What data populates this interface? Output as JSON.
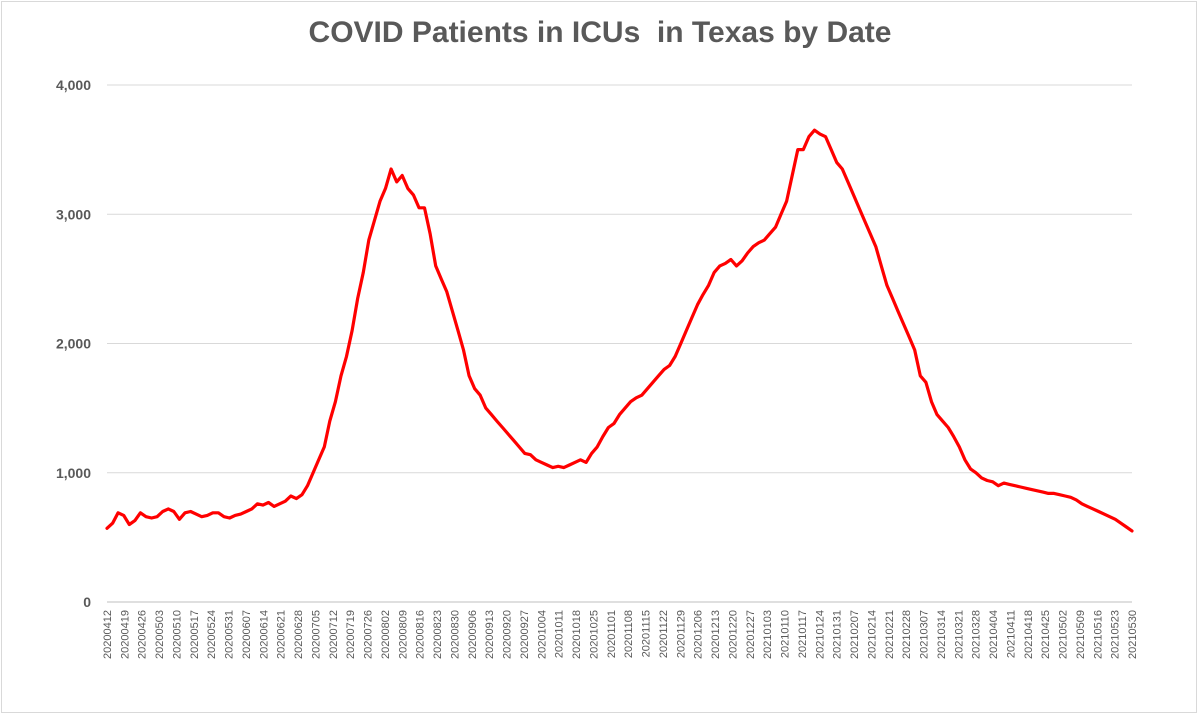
{
  "chart_data": {
    "type": "line",
    "title": "COVID Patients in ICUs  in Texas by Date",
    "xlabel": "",
    "ylabel": "",
    "ylim": [
      0,
      4000
    ],
    "y_ticks": [
      "0",
      "1,000",
      "2,000",
      "3,000",
      "4,000"
    ],
    "x_ticks": [
      "20200412",
      "20200419",
      "20200426",
      "20200503",
      "20200510",
      "20200517",
      "20200524",
      "20200531",
      "20200607",
      "20200614",
      "20200621",
      "20200628",
      "20200705",
      "20200712",
      "20200719",
      "20200726",
      "20200802",
      "20200809",
      "20200816",
      "20200823",
      "20200830",
      "20200906",
      "20200913",
      "20200920",
      "20200927",
      "20201004",
      "20201011",
      "20201018",
      "20201025",
      "20201101",
      "20201108",
      "20201115",
      "20201122",
      "20201129",
      "20201206",
      "20201213",
      "20201220",
      "20201227",
      "20210103",
      "20210110",
      "20210117",
      "20210124",
      "20210131",
      "20210207",
      "20210214",
      "20210221",
      "20210228",
      "20210307",
      "20210314",
      "20210321",
      "20210328",
      "20210404",
      "20210411",
      "20210418",
      "20210425",
      "20210502",
      "20210509",
      "20210516",
      "20210523",
      "20210530"
    ],
    "grid": true,
    "legend": "none",
    "colors": {
      "line": "#ff0000",
      "grid": "#d9d9d9",
      "axis": "#bfbfbf",
      "text": "#595959"
    },
    "series": [
      {
        "values": [
          570,
          610,
          690,
          670,
          600,
          630,
          690,
          660,
          650,
          660,
          700,
          720,
          700,
          640,
          690,
          700,
          680,
          660,
          670,
          690,
          690,
          660,
          650,
          670,
          680,
          700,
          720,
          760,
          750,
          770,
          740,
          760,
          780,
          820,
          800,
          830,
          900,
          1000,
          1100,
          1200,
          1400,
          1550,
          1750,
          1900,
          2100,
          2350,
          2550,
          2800,
          2950,
          3100,
          3200,
          3350,
          3250,
          3300,
          3200,
          3150,
          3050,
          3050,
          2850,
          2600,
          2500,
          2400,
          2250,
          2100,
          1950,
          1750,
          1650,
          1600,
          1500,
          1450,
          1400,
          1350,
          1300,
          1250,
          1200,
          1150,
          1140,
          1100,
          1080,
          1060,
          1040,
          1050,
          1040,
          1060,
          1080,
          1100,
          1080,
          1150,
          1200,
          1280,
          1350,
          1380,
          1450,
          1500,
          1550,
          1580,
          1600,
          1650,
          1700,
          1750,
          1800,
          1830,
          1900,
          2000,
          2100,
          2200,
          2300,
          2380,
          2450,
          2550,
          2600,
          2620,
          2650,
          2600,
          2640,
          2700,
          2750,
          2780,
          2800,
          2850,
          2900,
          3000,
          3100,
          3300,
          3500,
          3500,
          3600,
          3650,
          3620,
          3600,
          3500,
          3400,
          3350,
          3250,
          3150,
          3050,
          2950,
          2850,
          2750,
          2600,
          2450,
          2350,
          2250,
          2150,
          2050,
          1950,
          1750,
          1700,
          1550,
          1450,
          1400,
          1350,
          1280,
          1200,
          1100,
          1030,
          1000,
          960,
          940,
          930,
          900,
          920,
          910,
          900,
          890,
          880,
          870,
          860,
          850,
          840,
          840,
          830,
          820,
          810,
          790,
          760,
          740,
          720,
          700,
          680,
          660,
          640,
          610,
          580,
          550
        ]
      }
    ]
  }
}
